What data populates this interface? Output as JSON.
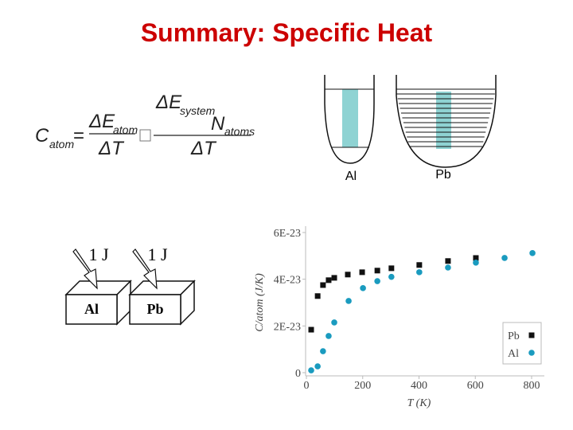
{
  "title": "Summary: Specific Heat",
  "equation": {
    "lhs": "C",
    "lhs_sub": "atom",
    "equals": "=",
    "frac1_num": "ΔE",
    "frac1_num_sub": "atom",
    "frac1_den": "ΔT",
    "frac2_num": "ΔE",
    "frac2_num_sub": "system",
    "frac2_mid": "N",
    "frac2_mid_sub": "atoms",
    "frac2_den": "ΔT"
  },
  "wells": [
    {
      "label": "Al"
    },
    {
      "label": "Pb"
    }
  ],
  "blocks": [
    {
      "energy": "1 J",
      "label": "Al"
    },
    {
      "energy": "1 J",
      "label": "Pb"
    }
  ],
  "chart_data": {
    "type": "scatter",
    "xlabel": "T (K)",
    "ylabel": "C/atom (J/K)",
    "xlim": [
      0,
      800
    ],
    "xticks": [
      0,
      200,
      400,
      600,
      800
    ],
    "ylim": [
      0,
      6e-23
    ],
    "yticks": [
      0,
      {
        "value": 2e-23,
        "label": "2E-23"
      },
      {
        "value": 4e-23,
        "label": "4E-23"
      },
      {
        "value": 6e-23,
        "label": "6E-23"
      }
    ],
    "legend": "lower right",
    "series": [
      {
        "name": "Pb",
        "color": "#111111",
        "marker": "square",
        "x": [
          17,
          40,
          59,
          79,
          99,
          147,
          198,
          252,
          302,
          401,
          503,
          602
        ],
        "values": [
          1.84e-23,
          3.28e-23,
          3.75e-23,
          3.96e-23,
          4.06e-23,
          4.2e-23,
          4.3e-23,
          4.37e-23,
          4.47e-23,
          4.61e-23,
          4.78e-23,
          4.91e-23
        ]
      },
      {
        "name": "Al",
        "color": "#1a9bbf",
        "marker": "circle",
        "x": [
          17,
          40,
          59,
          79,
          99,
          150,
          201,
          252,
          302,
          401,
          503,
          602,
          704,
          803
        ],
        "values": [
          1e-24,
          2.7e-24,
          9.2e-24,
          1.57e-23,
          2.15e-23,
          3.07e-23,
          3.62e-23,
          3.92e-23,
          4.1e-23,
          4.3e-23,
          4.5e-23,
          4.71e-23,
          4.91e-23,
          5.12e-23
        ]
      }
    ]
  }
}
